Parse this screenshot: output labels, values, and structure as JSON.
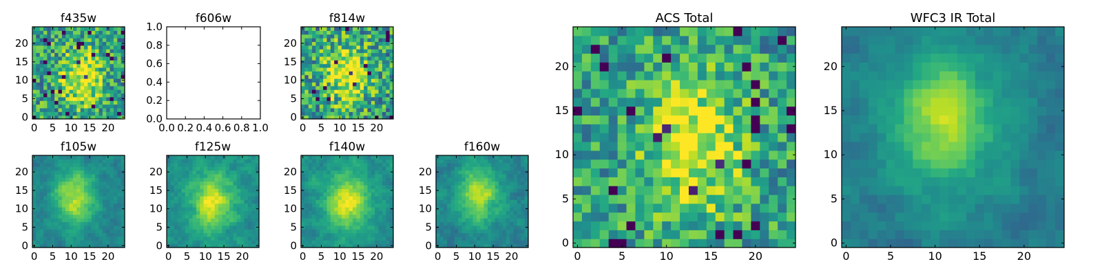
{
  "colormap": "viridis",
  "colors": {
    "background": "#ffffff",
    "axes_frame": "#000000",
    "empty_axes_face": "#ffffff"
  },
  "chart_data": [
    {
      "id": "f435w",
      "type": "heatmap",
      "title": "f435w",
      "xlim": [
        0,
        25
      ],
      "ylim": [
        0,
        25
      ],
      "xticks": [
        "0",
        "5",
        "10",
        "15",
        "20"
      ],
      "yticks": [
        "0",
        "5",
        "10",
        "15",
        "20"
      ],
      "grid": false,
      "texture": "noisy",
      "seed": 11,
      "peak": [
        13,
        11
      ],
      "base": 0.55,
      "noise": 0.3
    },
    {
      "id": "f606w",
      "type": "empty",
      "title": "f606w",
      "xlim": [
        0.0,
        1.0
      ],
      "ylim": [
        0.0,
        1.0
      ],
      "xticks": [
        "0.0",
        "0.2",
        "0.4",
        "0.6",
        "0.8",
        "1.0"
      ],
      "yticks": [
        "0.0",
        "0.2",
        "0.4",
        "0.6",
        "0.8",
        "1.0"
      ],
      "grid": false
    },
    {
      "id": "f814w",
      "type": "heatmap",
      "title": "f814w",
      "xlim": [
        0,
        25
      ],
      "ylim": [
        0,
        25
      ],
      "xticks": [
        "0",
        "5",
        "10",
        "15",
        "20"
      ],
      "yticks": [
        "0",
        "5",
        "10",
        "15",
        "20"
      ],
      "grid": false,
      "texture": "noisy",
      "seed": 23,
      "peak": [
        12,
        12
      ],
      "base": 0.55,
      "noise": 0.32
    },
    {
      "id": "f105w",
      "type": "heatmap",
      "title": "f105w",
      "xlim": [
        0,
        25
      ],
      "ylim": [
        0,
        25
      ],
      "xticks": [
        "0",
        "5",
        "10",
        "15",
        "20"
      ],
      "yticks": [
        "0",
        "5",
        "10",
        "15",
        "20"
      ],
      "grid": false,
      "texture": "smooth",
      "seed": 37,
      "peak": [
        11,
        13
      ],
      "base": 0.45,
      "noise": 0.16
    },
    {
      "id": "f125w",
      "type": "heatmap",
      "title": "f125w",
      "xlim": [
        0,
        25
      ],
      "ylim": [
        0,
        25
      ],
      "xticks": [
        "0",
        "5",
        "10",
        "15",
        "20"
      ],
      "yticks": [
        "0",
        "5",
        "10",
        "15",
        "20"
      ],
      "grid": false,
      "texture": "smooth",
      "seed": 41,
      "peak": [
        12,
        12
      ],
      "base": 0.5,
      "noise": 0.18
    },
    {
      "id": "f140w",
      "type": "heatmap",
      "title": "f140w",
      "xlim": [
        0,
        25
      ],
      "ylim": [
        0,
        25
      ],
      "xticks": [
        "0",
        "5",
        "10",
        "15",
        "20"
      ],
      "yticks": [
        "0",
        "5",
        "10",
        "15",
        "20"
      ],
      "grid": false,
      "texture": "smooth",
      "seed": 53,
      "peak": [
        12,
        12
      ],
      "base": 0.5,
      "noise": 0.18
    },
    {
      "id": "f160w",
      "type": "heatmap",
      "title": "f160w",
      "xlim": [
        0,
        25
      ],
      "ylim": [
        0,
        25
      ],
      "xticks": [
        "0",
        "5",
        "10",
        "15",
        "20"
      ],
      "yticks": [
        "0",
        "5",
        "10",
        "15",
        "20"
      ],
      "grid": false,
      "texture": "smooth",
      "seed": 67,
      "peak": [
        11,
        14
      ],
      "base": 0.45,
      "noise": 0.18
    },
    {
      "id": "acs-total",
      "type": "heatmap",
      "title": "ACS Total",
      "xlim": [
        0,
        25
      ],
      "ylim": [
        0,
        25
      ],
      "xticks": [
        "0",
        "5",
        "10",
        "15",
        "20"
      ],
      "yticks": [
        "0",
        "5",
        "10",
        "15",
        "20"
      ],
      "grid": false,
      "texture": "noisy",
      "seed": 79,
      "peak": [
        13,
        11
      ],
      "base": 0.55,
      "noise": 0.26
    },
    {
      "id": "wfc3-ir-total",
      "type": "heatmap",
      "title": "WFC3 IR Total",
      "xlim": [
        0,
        25
      ],
      "ylim": [
        0,
        25
      ],
      "xticks": [
        "0",
        "5",
        "10",
        "15",
        "20"
      ],
      "yticks": [
        "0",
        "5",
        "10",
        "15",
        "20"
      ],
      "grid": false,
      "texture": "smooth",
      "seed": 97,
      "peak": [
        11,
        14
      ],
      "base": 0.42,
      "noise": 0.14
    }
  ]
}
